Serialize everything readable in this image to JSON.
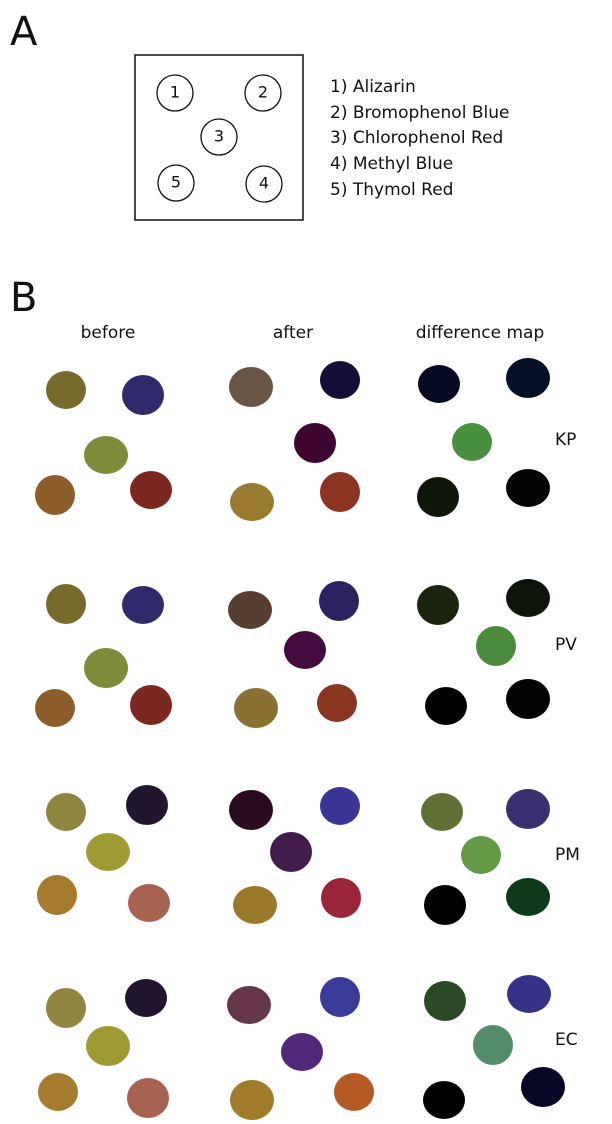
{
  "panel_a": {
    "label": "A",
    "spots": [
      {
        "number": "1"
      },
      {
        "number": "2"
      },
      {
        "number": "3"
      },
      {
        "number": "4"
      },
      {
        "number": "5"
      }
    ],
    "legend": [
      "1) Alizarin",
      "2) Bromophenol Blue",
      "3) Chlorophenol Red",
      "4) Methyl Blue",
      "5) Thymol Red"
    ]
  },
  "panel_b": {
    "label": "B",
    "columns": [
      "before",
      "after",
      "difference map"
    ],
    "rows": [
      "KP",
      "PV",
      "PM",
      "EC"
    ]
  }
}
